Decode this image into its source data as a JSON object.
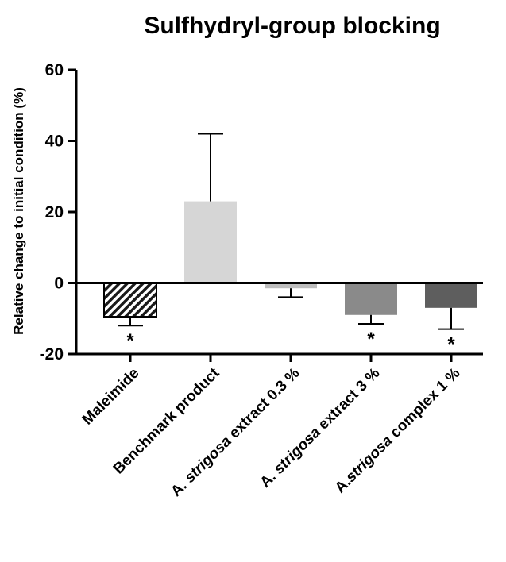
{
  "chart_data": {
    "type": "bar",
    "title": "Sulfhydryl-group blocking",
    "ylabel": "Relative change to initial condition (%)",
    "xlabel": "",
    "ylim": [
      -20,
      60
    ],
    "yticks": [
      "-20",
      "0",
      "20",
      "40",
      "60"
    ],
    "categories": [
      {
        "pre": "",
        "ital": "",
        "post": "Maleimide"
      },
      {
        "pre": "",
        "ital": "",
        "post": "Benchmark product"
      },
      {
        "pre": "A. ",
        "ital": "strigosa",
        "post": " extract  0.3 %"
      },
      {
        "pre": "A. ",
        "ital": "strigosa",
        "post": " extract 3 %"
      },
      {
        "pre": "A.",
        "ital": "strigosa",
        "post": " complex 1 %"
      }
    ],
    "values": [
      -9.5,
      23.0,
      -1.5,
      -9.0,
      -7.0
    ],
    "error_bars": [
      2.5,
      19.0,
      2.5,
      2.5,
      6.0
    ],
    "significance": [
      "*",
      "",
      "",
      "*",
      "*"
    ],
    "bar_colors": [
      "#1a1a1a",
      "#d6d6d6",
      "#bdbdbd",
      "#8a8a8a",
      "#5e5e5e"
    ],
    "bar_patterns": [
      "diagonal-stripes",
      "solid",
      "solid",
      "solid",
      "solid"
    ]
  }
}
